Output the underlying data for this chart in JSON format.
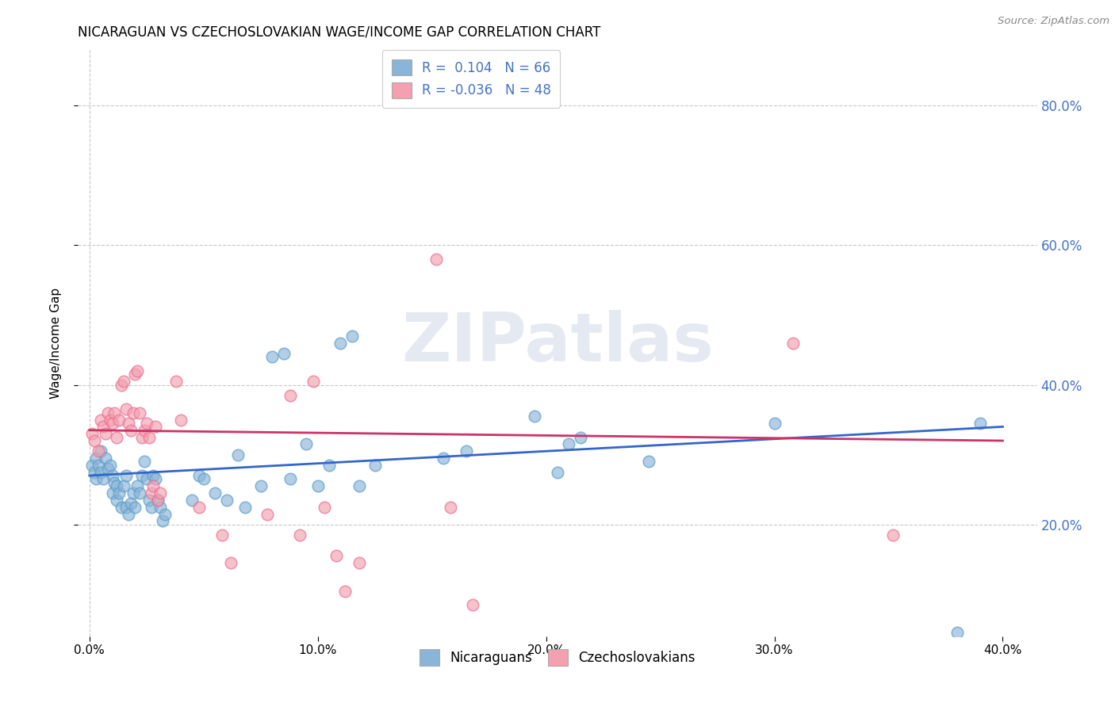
{
  "title": "NICARAGUAN VS CZECHOSLOVAKIAN WAGE/INCOME GAP CORRELATION CHART",
  "source": "Source: ZipAtlas.com",
  "ylabel": "Wage/Income Gap",
  "xlim": [
    -0.005,
    0.415
  ],
  "ylim": [
    0.04,
    0.88
  ],
  "legend_line1": "R =  0.104   N = 66",
  "legend_line2": "R = -0.036   N = 48",
  "blue_color": "#8ab4d8",
  "pink_color": "#f4a0b0",
  "blue_edge_color": "#5a9dc8",
  "pink_edge_color": "#e87090",
  "blue_line_color": "#3366cc",
  "pink_line_color": "#cc3366",
  "background_color": "#ffffff",
  "grid_color": "#c8c8c8",
  "watermark": "ZIPatlas",
  "yticks": [
    0.2,
    0.4,
    0.6,
    0.8
  ],
  "xticks": [
    0.0,
    0.1,
    0.2,
    0.3,
    0.4
  ],
  "blue_scatter_x": [
    0.001,
    0.002,
    0.003,
    0.003,
    0.004,
    0.005,
    0.005,
    0.006,
    0.007,
    0.008,
    0.009,
    0.01,
    0.01,
    0.011,
    0.012,
    0.012,
    0.013,
    0.014,
    0.015,
    0.016,
    0.016,
    0.017,
    0.018,
    0.019,
    0.02,
    0.021,
    0.022,
    0.023,
    0.024,
    0.025,
    0.026,
    0.027,
    0.028,
    0.029,
    0.03,
    0.031,
    0.032,
    0.033,
    0.045,
    0.048,
    0.05,
    0.055,
    0.06,
    0.065,
    0.068,
    0.075,
    0.08,
    0.085,
    0.088,
    0.095,
    0.1,
    0.105,
    0.11,
    0.115,
    0.118,
    0.125,
    0.155,
    0.165,
    0.195,
    0.205,
    0.21,
    0.215,
    0.245,
    0.3,
    0.38,
    0.39
  ],
  "blue_scatter_y": [
    0.285,
    0.275,
    0.265,
    0.295,
    0.285,
    0.305,
    0.275,
    0.265,
    0.295,
    0.28,
    0.285,
    0.245,
    0.27,
    0.26,
    0.235,
    0.255,
    0.245,
    0.225,
    0.255,
    0.27,
    0.225,
    0.215,
    0.23,
    0.245,
    0.225,
    0.255,
    0.245,
    0.27,
    0.29,
    0.265,
    0.235,
    0.225,
    0.27,
    0.265,
    0.235,
    0.225,
    0.205,
    0.215,
    0.235,
    0.27,
    0.265,
    0.245,
    0.235,
    0.3,
    0.225,
    0.255,
    0.44,
    0.445,
    0.265,
    0.315,
    0.255,
    0.285,
    0.46,
    0.47,
    0.255,
    0.285,
    0.295,
    0.305,
    0.355,
    0.275,
    0.315,
    0.325,
    0.29,
    0.345,
    0.045,
    0.345
  ],
  "pink_scatter_x": [
    0.001,
    0.002,
    0.004,
    0.005,
    0.006,
    0.007,
    0.008,
    0.009,
    0.01,
    0.011,
    0.012,
    0.013,
    0.014,
    0.015,
    0.016,
    0.017,
    0.018,
    0.019,
    0.02,
    0.021,
    0.022,
    0.023,
    0.024,
    0.025,
    0.026,
    0.027,
    0.028,
    0.029,
    0.03,
    0.031,
    0.038,
    0.04,
    0.048,
    0.058,
    0.062,
    0.078,
    0.088,
    0.092,
    0.098,
    0.103,
    0.108,
    0.112,
    0.118,
    0.152,
    0.158,
    0.168,
    0.308,
    0.352
  ],
  "pink_scatter_y": [
    0.33,
    0.32,
    0.305,
    0.35,
    0.34,
    0.33,
    0.36,
    0.35,
    0.345,
    0.36,
    0.325,
    0.35,
    0.4,
    0.405,
    0.365,
    0.345,
    0.335,
    0.36,
    0.415,
    0.42,
    0.36,
    0.325,
    0.335,
    0.345,
    0.325,
    0.245,
    0.255,
    0.34,
    0.235,
    0.245,
    0.405,
    0.35,
    0.225,
    0.185,
    0.145,
    0.215,
    0.385,
    0.185,
    0.405,
    0.225,
    0.155,
    0.105,
    0.145,
    0.58,
    0.225,
    0.085,
    0.46,
    0.185
  ],
  "blue_trend": [
    0.0,
    0.4,
    0.27,
    0.34
  ],
  "pink_trend": [
    0.0,
    0.4,
    0.335,
    0.32
  ]
}
